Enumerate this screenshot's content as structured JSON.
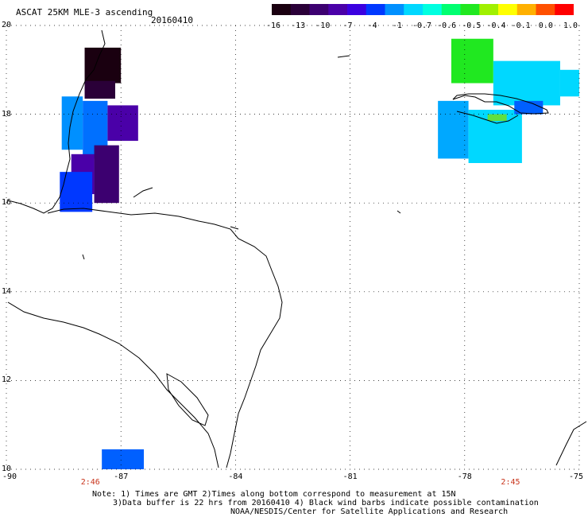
{
  "header": {
    "product_title": "ASCAT 25KM MLE-3 ascending",
    "date": "20160410"
  },
  "colorbar": {
    "labels": [
      "-16",
      "-13",
      "-10",
      "-7",
      "-4",
      "-1",
      "-0.7",
      "-0.6",
      "-0.5",
      "-0.4",
      "-0.1",
      "0.0",
      "1.0"
    ],
    "colors": [
      "#1a0010",
      "#2a0038",
      "#3c0070",
      "#4a00a8",
      "#3a00e0",
      "#0038ff",
      "#0090ff",
      "#00d8ff",
      "#00ffe0",
      "#00ff70",
      "#20e820",
      "#a0f000",
      "#ffff00",
      "#ffb000",
      "#ff5000",
      "#ff0000"
    ]
  },
  "map": {
    "lat_labels": [
      20,
      18,
      16,
      14,
      12,
      10
    ],
    "lon_labels": [
      -90,
      -87,
      -84,
      -81,
      -78,
      -75
    ],
    "lat_range": [
      10,
      20
    ],
    "lon_range": [
      -90,
      -75
    ],
    "grid": true,
    "times_along_bottom": [
      {
        "lon": -87.8,
        "label": "2:46"
      },
      {
        "lon": -76.8,
        "label": "2:45"
      }
    ],
    "swaths": [
      {
        "name": "belize-north",
        "color": "#1a0010",
        "lon": [
          -87.95,
          -87.0
        ],
        "lat": [
          18.7,
          19.5
        ]
      },
      {
        "name": "belize-north2",
        "color": "#2a0038",
        "lon": [
          -87.95,
          -87.15
        ],
        "lat": [
          18.35,
          18.75
        ]
      },
      {
        "name": "belize-mid-a",
        "color": "#0090ff",
        "lon": [
          -88.55,
          -88.0
        ],
        "lat": [
          17.2,
          18.4
        ]
      },
      {
        "name": "belize-mid-b",
        "color": "#0070ff",
        "lon": [
          -88.0,
          -87.35
        ],
        "lat": [
          17.0,
          18.3
        ]
      },
      {
        "name": "belize-east",
        "color": "#4a00a8",
        "lon": [
          -87.35,
          -86.55
        ],
        "lat": [
          17.4,
          18.2
        ]
      },
      {
        "name": "belize-south",
        "color": "#3c0070",
        "lon": [
          -87.7,
          -87.05
        ],
        "lat": [
          16.0,
          17.3
        ]
      },
      {
        "name": "belize-south-b",
        "color": "#4a00a8",
        "lon": [
          -88.3,
          -87.7
        ],
        "lat": [
          16.2,
          17.1
        ]
      },
      {
        "name": "honduras-tip",
        "color": "#0038ff",
        "lon": [
          -88.6,
          -87.75
        ],
        "lat": [
          15.8,
          16.7
        ]
      },
      {
        "name": "bottom-strip",
        "color": "#0060ff",
        "lon": [
          -87.5,
          -86.4
        ],
        "lat": [
          10.0,
          10.45
        ]
      },
      {
        "name": "jamaica-north",
        "color": "#20e820",
        "lon": [
          -78.35,
          -77.25
        ],
        "lat": [
          18.7,
          19.7
        ]
      },
      {
        "name": "jamaica-ne",
        "color": "#00d8ff",
        "lon": [
          -77.25,
          -75.5
        ],
        "lat": [
          18.2,
          19.2
        ]
      },
      {
        "name": "jamaica-nw",
        "color": "#00a8ff",
        "lon": [
          -78.7,
          -77.9
        ],
        "lat": [
          17.0,
          18.3
        ]
      },
      {
        "name": "jamaica-center",
        "color": "#00d8ff",
        "lon": [
          -77.9,
          -76.5
        ],
        "lat": [
          16.9,
          18.1
        ]
      },
      {
        "name": "jamaica-green",
        "color": "#60e040",
        "lon": [
          -77.4,
          -76.9
        ],
        "lat": [
          17.85,
          18.0
        ]
      },
      {
        "name": "jamaica-east",
        "color": "#0060ff",
        "lon": [
          -76.7,
          -75.95
        ],
        "lat": [
          18.0,
          18.3
        ]
      },
      {
        "name": "jamaica-east2",
        "color": "#00d8ff",
        "lon": [
          -75.5,
          -75.0
        ],
        "lat": [
          18.4,
          19.0
        ]
      }
    ]
  },
  "notes": {
    "line1": "Note: 1) Times are GMT 2)Times along bottom correspond to measurement at 15N",
    "line2": "3)Data buffer is 22 hrs from 20160410 4) Black wind barbs indicate possible contamination",
    "line3": "NOAA/NESDIS/Center for Satellite Applications and Research"
  }
}
